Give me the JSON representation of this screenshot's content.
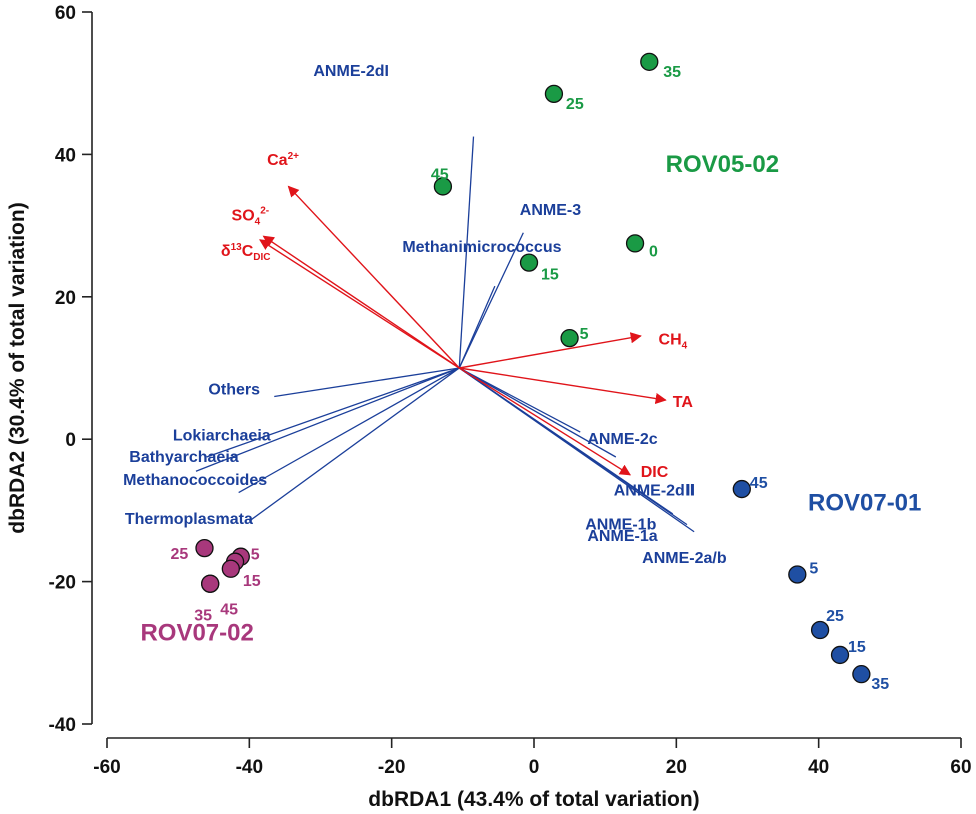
{
  "chart_data": {
    "type": "scatter",
    "subtype": "dbRDA biplot",
    "xlabel": "dbRDA1 (43.4% of total variation)",
    "ylabel": "dbRDA2 (30.4% of total variation)",
    "xlim": [
      -60,
      60
    ],
    "ylim": [
      -40,
      60
    ],
    "xticks": [
      -60,
      -40,
      -20,
      0,
      20,
      40,
      60
    ],
    "yticks": [
      -40,
      -20,
      0,
      20,
      40,
      60
    ],
    "origin": [
      -10.5,
      10
    ],
    "series": [
      {
        "name": "ROV05-02",
        "color": "#1a9a45",
        "labelColor": "#1a9a45",
        "points": [
          {
            "x": 16.2,
            "y": 53,
            "label": "35"
          },
          {
            "x": 2.8,
            "y": 48.5,
            "label": "25"
          },
          {
            "x": -12.8,
            "y": 35.5,
            "label": "45"
          },
          {
            "x": 14.2,
            "y": 27.5,
            "label": "0"
          },
          {
            "x": -0.7,
            "y": 24.8,
            "label": "15"
          },
          {
            "x": 5.0,
            "y": 14.2,
            "label": "5"
          }
        ]
      },
      {
        "name": "ROV07-01",
        "color": "#1f4fa3",
        "labelColor": "#1f4fa3",
        "points": [
          {
            "x": 29.2,
            "y": -7.0,
            "label": "45"
          },
          {
            "x": 37.0,
            "y": -19.0,
            "label": "5"
          },
          {
            "x": 40.2,
            "y": -26.8,
            "label": "25"
          },
          {
            "x": 43.0,
            "y": -30.3,
            "label": "15"
          },
          {
            "x": 46.0,
            "y": -33.0,
            "label": "35"
          }
        ]
      },
      {
        "name": "ROV07-02",
        "color": "#a8387c",
        "labelColor": "#a8387c",
        "points": [
          {
            "x": -46.3,
            "y": -15.3,
            "label": "25"
          },
          {
            "x": -41.2,
            "y": -16.5,
            "label": "5"
          },
          {
            "x": -42.0,
            "y": -17.2,
            "label": ""
          },
          {
            "x": -42.6,
            "y": -18.2,
            "label": "15"
          },
          {
            "x": -45.5,
            "y": -20.3,
            "label": "45"
          },
          {
            "x": -45.5,
            "y": -20.3,
            "label": "35"
          }
        ]
      }
    ],
    "group_labels": [
      {
        "text": "ROV05-02",
        "x": 18.5,
        "y": 37.5
      },
      {
        "text": "ROV07-01",
        "x": 38.5,
        "y": -10
      },
      {
        "text": "ROV07-02",
        "x": -55.3,
        "y": -28.3
      }
    ],
    "environmental_vectors": [
      {
        "name": "Ca",
        "sup": "2+",
        "sub": "",
        "x": -34.5,
        "y": 35.5
      },
      {
        "name": "SO",
        "sub": "4",
        "sup": "2-",
        "x": -38,
        "y": 28.5
      },
      {
        "name": "δ",
        "presup": "13",
        "post": "C",
        "sub": "DIC",
        "x": -38.5,
        "y": 28
      },
      {
        "name": "CH",
        "sub": "4",
        "sup": "",
        "x": 15,
        "y": 14.5
      },
      {
        "name": "TA",
        "sub": "",
        "sup": "",
        "x": 18.5,
        "y": 5.5
      },
      {
        "name": "DIC",
        "sub": "",
        "sup": "",
        "x": 13.5,
        "y": -5
      }
    ],
    "species_vectors": [
      {
        "name": "ANME-2dI",
        "x": -8.5,
        "y": 42.5
      },
      {
        "name": "ANME-3",
        "x": -1.5,
        "y": 29
      },
      {
        "name": "Methanimicrococcus",
        "x": -5.5,
        "y": 21.5
      },
      {
        "name": "Others",
        "x": -36.5,
        "y": 6
      },
      {
        "name": "Lokiarchaeia",
        "x": -46,
        "y": -2.5
      },
      {
        "name": "Bathyarchaeia",
        "x": -47.5,
        "y": -4.5
      },
      {
        "name": "Methanococcoides",
        "x": -41.5,
        "y": -7.5
      },
      {
        "name": "Thermoplasmata",
        "x": -40,
        "y": -11.5
      },
      {
        "name": "ANME-2c",
        "x": 6.5,
        "y": 1.0
      },
      {
        "name": "ANME-2dⅡ",
        "x": 11.5,
        "y": -2.5
      },
      {
        "name": "ANME-1b",
        "x": 19.5,
        "y": -10.5
      },
      {
        "name": "ANME-1a",
        "x": 21.5,
        "y": -12
      },
      {
        "name": "ANME-2a/b",
        "x": 22.5,
        "y": -13
      }
    ],
    "colors": {
      "environmental": "#e0141a",
      "species": "#1b3f9a"
    }
  }
}
